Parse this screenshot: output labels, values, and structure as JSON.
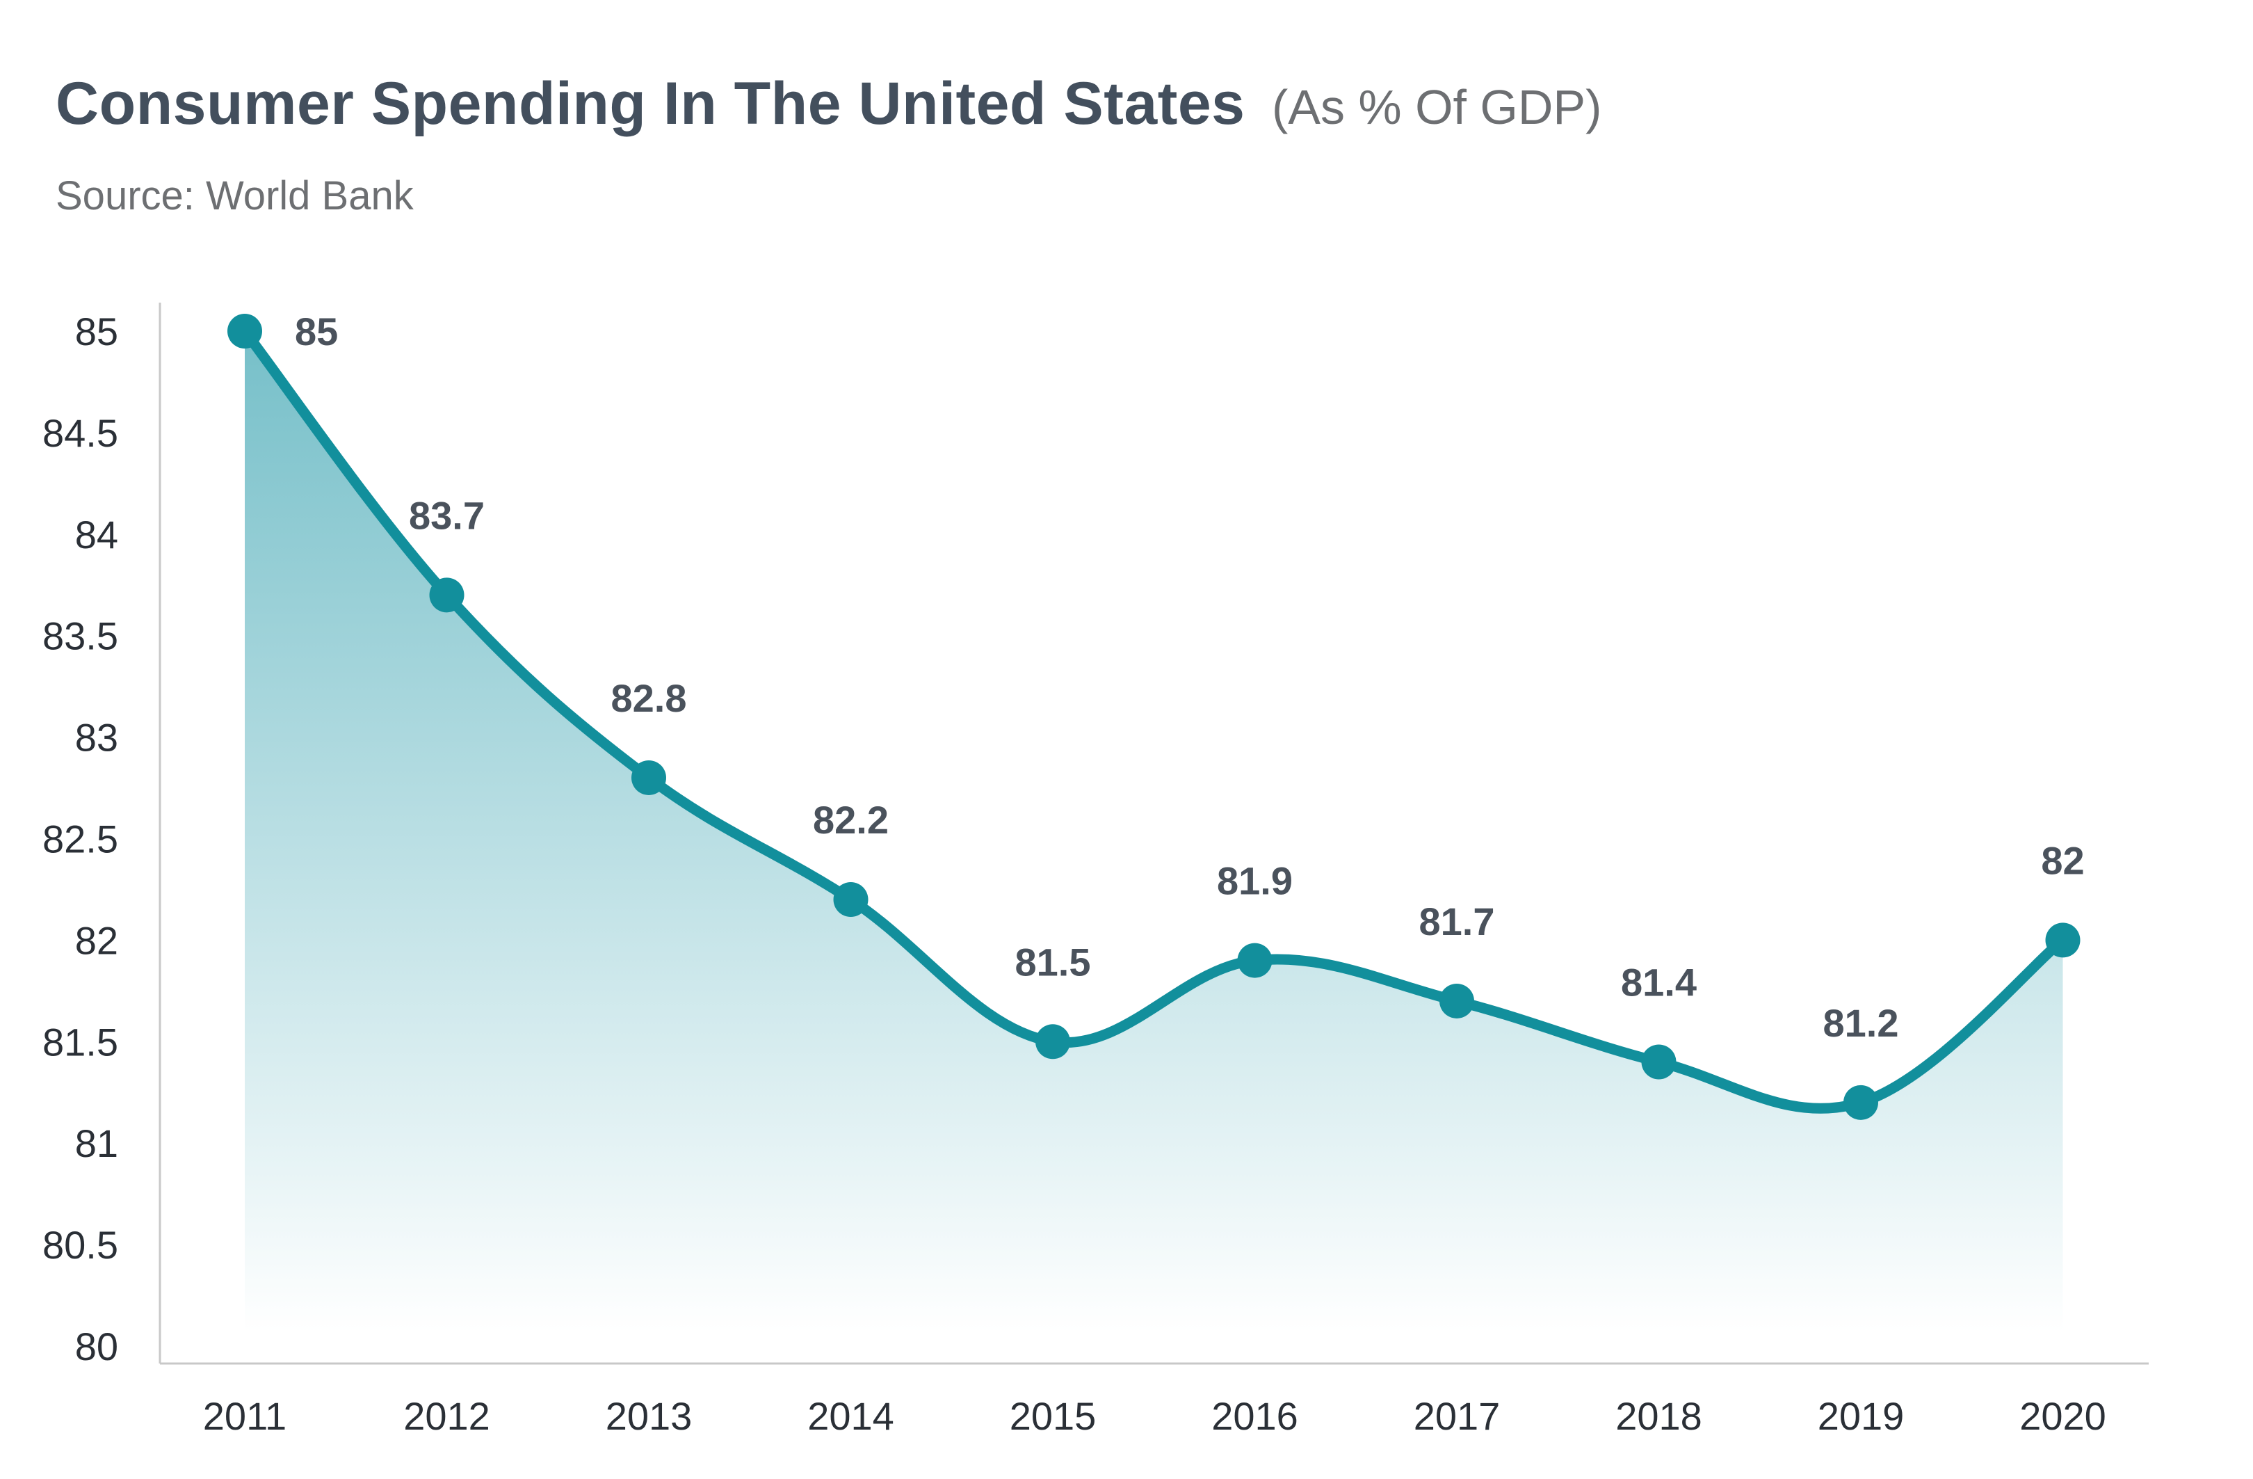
{
  "header": {
    "title": "Consumer Spending In The United States",
    "subtitle": "(As % Of GDP)",
    "source": "Source: World Bank"
  },
  "colors": {
    "line": "#128f9c",
    "area_top": "#6fbcc6",
    "area_bottom": "#ffffff",
    "axis": "#c8c8c8",
    "title": "#434f5d",
    "subtitle": "#6d6f72"
  },
  "chart_data": {
    "type": "area",
    "title": "Consumer Spending In The United States",
    "subtitle": "(As % Of GDP)",
    "xlabel": "",
    "ylabel": "",
    "categories": [
      "2011",
      "2012",
      "2013",
      "2014",
      "2015",
      "2016",
      "2017",
      "2018",
      "2019",
      "2020"
    ],
    "series": [
      {
        "values": [
          85,
          83.7,
          82.8,
          82.2,
          81.5,
          81.9,
          81.7,
          81.4,
          81.2,
          82
        ]
      }
    ],
    "data_labels": [
      "85",
      "83.7",
      "82.8",
      "82.2",
      "81.5",
      "81.9",
      "81.7",
      "81.4",
      "81.2",
      "82"
    ],
    "ylim": [
      80,
      85
    ],
    "yticks": [
      80,
      80.5,
      81,
      81.5,
      82,
      82.5,
      83,
      83.5,
      84,
      84.5,
      85
    ],
    "ytick_labels": [
      "80",
      "80.5",
      "81",
      "81.5",
      "82",
      "82.5",
      "83",
      "83.5",
      "84",
      "84.5",
      "85"
    ],
    "grid": false,
    "legend": "none",
    "smooth": true,
    "markers": true
  }
}
